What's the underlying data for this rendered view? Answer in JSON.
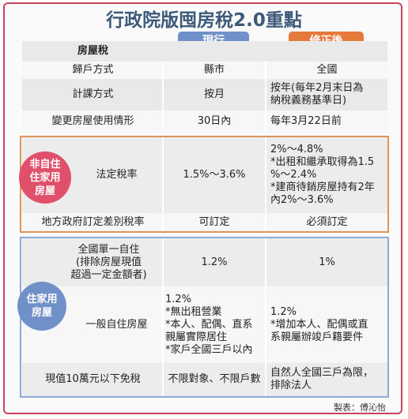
{
  "title": "行政院版囤房稅2.0重點",
  "columns": {
    "header": "房屋稅",
    "current": "現行",
    "revised": "修正後"
  },
  "rows": [
    [
      "歸戶方式",
      "縣市",
      "全國"
    ],
    [
      "計課方式",
      "按月",
      "按年(每年2月末日為\n納稅義務基準日)"
    ],
    [
      "變更房屋使用情形",
      "30日內",
      "每年3月22日前"
    ]
  ],
  "groups": [
    {
      "label": "非自住\n住家用\n房屋",
      "rows": [
        [
          "法定稅率",
          "1.5%～3.6%",
          "2%～4.8%\n*出租和繼承取得為1.5\n%～2.4%\n*建商待銷房屋持有2年\n內2%～3.6%"
        ],
        [
          "地方政府訂定差別稅率",
          "可訂定",
          "必須訂定"
        ]
      ]
    },
    {
      "label": "住家用\n房屋",
      "rows": [
        [
          "全國單一自住\n(排除房屋現值\n超過一定金額者)",
          "1.2%",
          "1%"
        ],
        [
          "一般自住房屋",
          "1.2%\n*無出租營業\n*本人、配偶、直系\n親屬實際居住\n*家戶全國三戶以內",
          "1.2%\n*增加本人、配偶或直\n系親屬辦竣戶籍要件"
        ],
        [
          "現值10萬元以下免稅",
          "不限對象、不限戶數",
          "自然人全國三戶為限，\n排除法人"
        ]
      ]
    }
  ],
  "credit": "製表：傅沁怡"
}
